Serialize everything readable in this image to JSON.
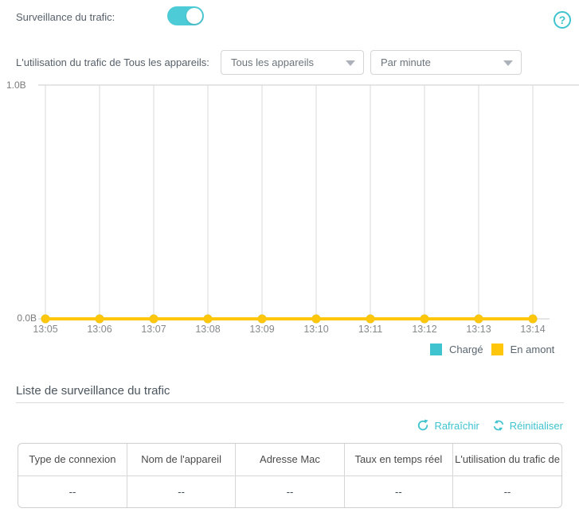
{
  "colors": {
    "accent_teal": "#3EC3CF",
    "toggle_teal": "#4DCBD6",
    "series_yellow": "#FFC60B",
    "grid_gray": "#D8D8D8"
  },
  "header": {
    "label": "Surveillance du trafic:",
    "toggle_state": "on"
  },
  "selector": {
    "label": "L'utilisation du trafic de Tous les appareils:",
    "device_dropdown_value": "Tous les appareils",
    "interval_dropdown_value": "Par minute"
  },
  "chart_data": {
    "type": "line",
    "x": [
      "13:05",
      "13:06",
      "13:07",
      "13:08",
      "13:09",
      "13:10",
      "13:11",
      "13:12",
      "13:13",
      "13:14"
    ],
    "series": [
      {
        "name": "Chargé",
        "color": "#3EC3CF",
        "values": [
          0,
          0,
          0,
          0,
          0,
          0,
          0,
          0,
          0,
          0
        ]
      },
      {
        "name": "En amont",
        "color": "#FFC60B",
        "values": [
          0,
          0,
          0,
          0,
          0,
          0,
          0,
          0,
          0,
          0
        ]
      }
    ],
    "ylim": [
      0,
      1
    ],
    "ytick_labels": {
      "max": "1.0B",
      "min": "0.0B"
    },
    "grid": "vertical",
    "legend_position": "bottom-right",
    "title": "",
    "xlabel": "",
    "ylabel": ""
  },
  "list_section": {
    "title": "Liste de surveillance du trafic",
    "refresh_label": "Rafraîchir",
    "reset_label": "Réinitialiser",
    "table": {
      "columns": [
        "Type de connexion",
        "Nom de l'appareil",
        "Adresse Mac",
        "Taux en temps réel",
        "L'utilisation du trafic de"
      ],
      "rows": [
        [
          "--",
          "--",
          "--",
          "--",
          "--"
        ]
      ]
    }
  }
}
